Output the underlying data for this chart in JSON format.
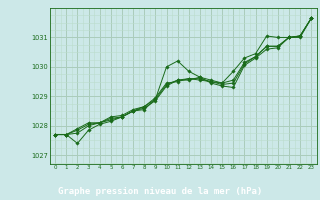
{
  "xlabel": "Graphe pression niveau de la mer (hPa)",
  "bg_color": "#cce8e8",
  "grid_major_color": "#aaccbb",
  "grid_minor_color": "#bbddcc",
  "line_color": "#1a6b1a",
  "marker_color": "#1a6b1a",
  "tick_label_color": "#1a6b1a",
  "label_bg_color": "#1a6b1a",
  "label_text_color": "#ffffff",
  "ylim": [
    1026.7,
    1032.0
  ],
  "xlim": [
    -0.5,
    23.5
  ],
  "yticks": [
    1027,
    1028,
    1029,
    1030,
    1031
  ],
  "xticks": [
    0,
    1,
    2,
    3,
    4,
    5,
    6,
    7,
    8,
    9,
    10,
    11,
    12,
    13,
    14,
    15,
    16,
    17,
    18,
    19,
    20,
    21,
    22,
    23
  ],
  "series": [
    [
      1027.7,
      1027.7,
      1027.4,
      1027.85,
      1028.05,
      1028.15,
      1028.3,
      1028.5,
      1028.55,
      1028.9,
      1030.0,
      1030.2,
      1029.85,
      1029.65,
      1029.55,
      1029.45,
      1029.85,
      1030.3,
      1030.45,
      1031.05,
      1031.0,
      1031.0,
      1031.05,
      1031.65
    ],
    [
      1027.7,
      1027.7,
      1027.75,
      1028.0,
      1028.1,
      1028.2,
      1028.3,
      1028.5,
      1028.6,
      1028.85,
      1029.35,
      1029.55,
      1029.55,
      1029.65,
      1029.45,
      1029.35,
      1029.3,
      1030.05,
      1030.3,
      1030.6,
      1030.65,
      1031.0,
      1031.05,
      1031.65
    ],
    [
      1027.7,
      1027.7,
      1027.85,
      1028.05,
      1028.1,
      1028.25,
      1028.3,
      1028.5,
      1028.65,
      1028.9,
      1029.4,
      1029.55,
      1029.6,
      1029.6,
      1029.5,
      1029.4,
      1029.45,
      1030.1,
      1030.35,
      1030.7,
      1030.7,
      1031.0,
      1031.05,
      1031.65
    ],
    [
      1027.7,
      1027.7,
      1027.9,
      1028.1,
      1028.1,
      1028.3,
      1028.35,
      1028.55,
      1028.65,
      1028.95,
      1029.45,
      1029.5,
      1029.6,
      1029.55,
      1029.5,
      1029.45,
      1029.55,
      1030.15,
      1030.35,
      1030.7,
      1030.7,
      1031.0,
      1031.0,
      1031.65
    ]
  ]
}
